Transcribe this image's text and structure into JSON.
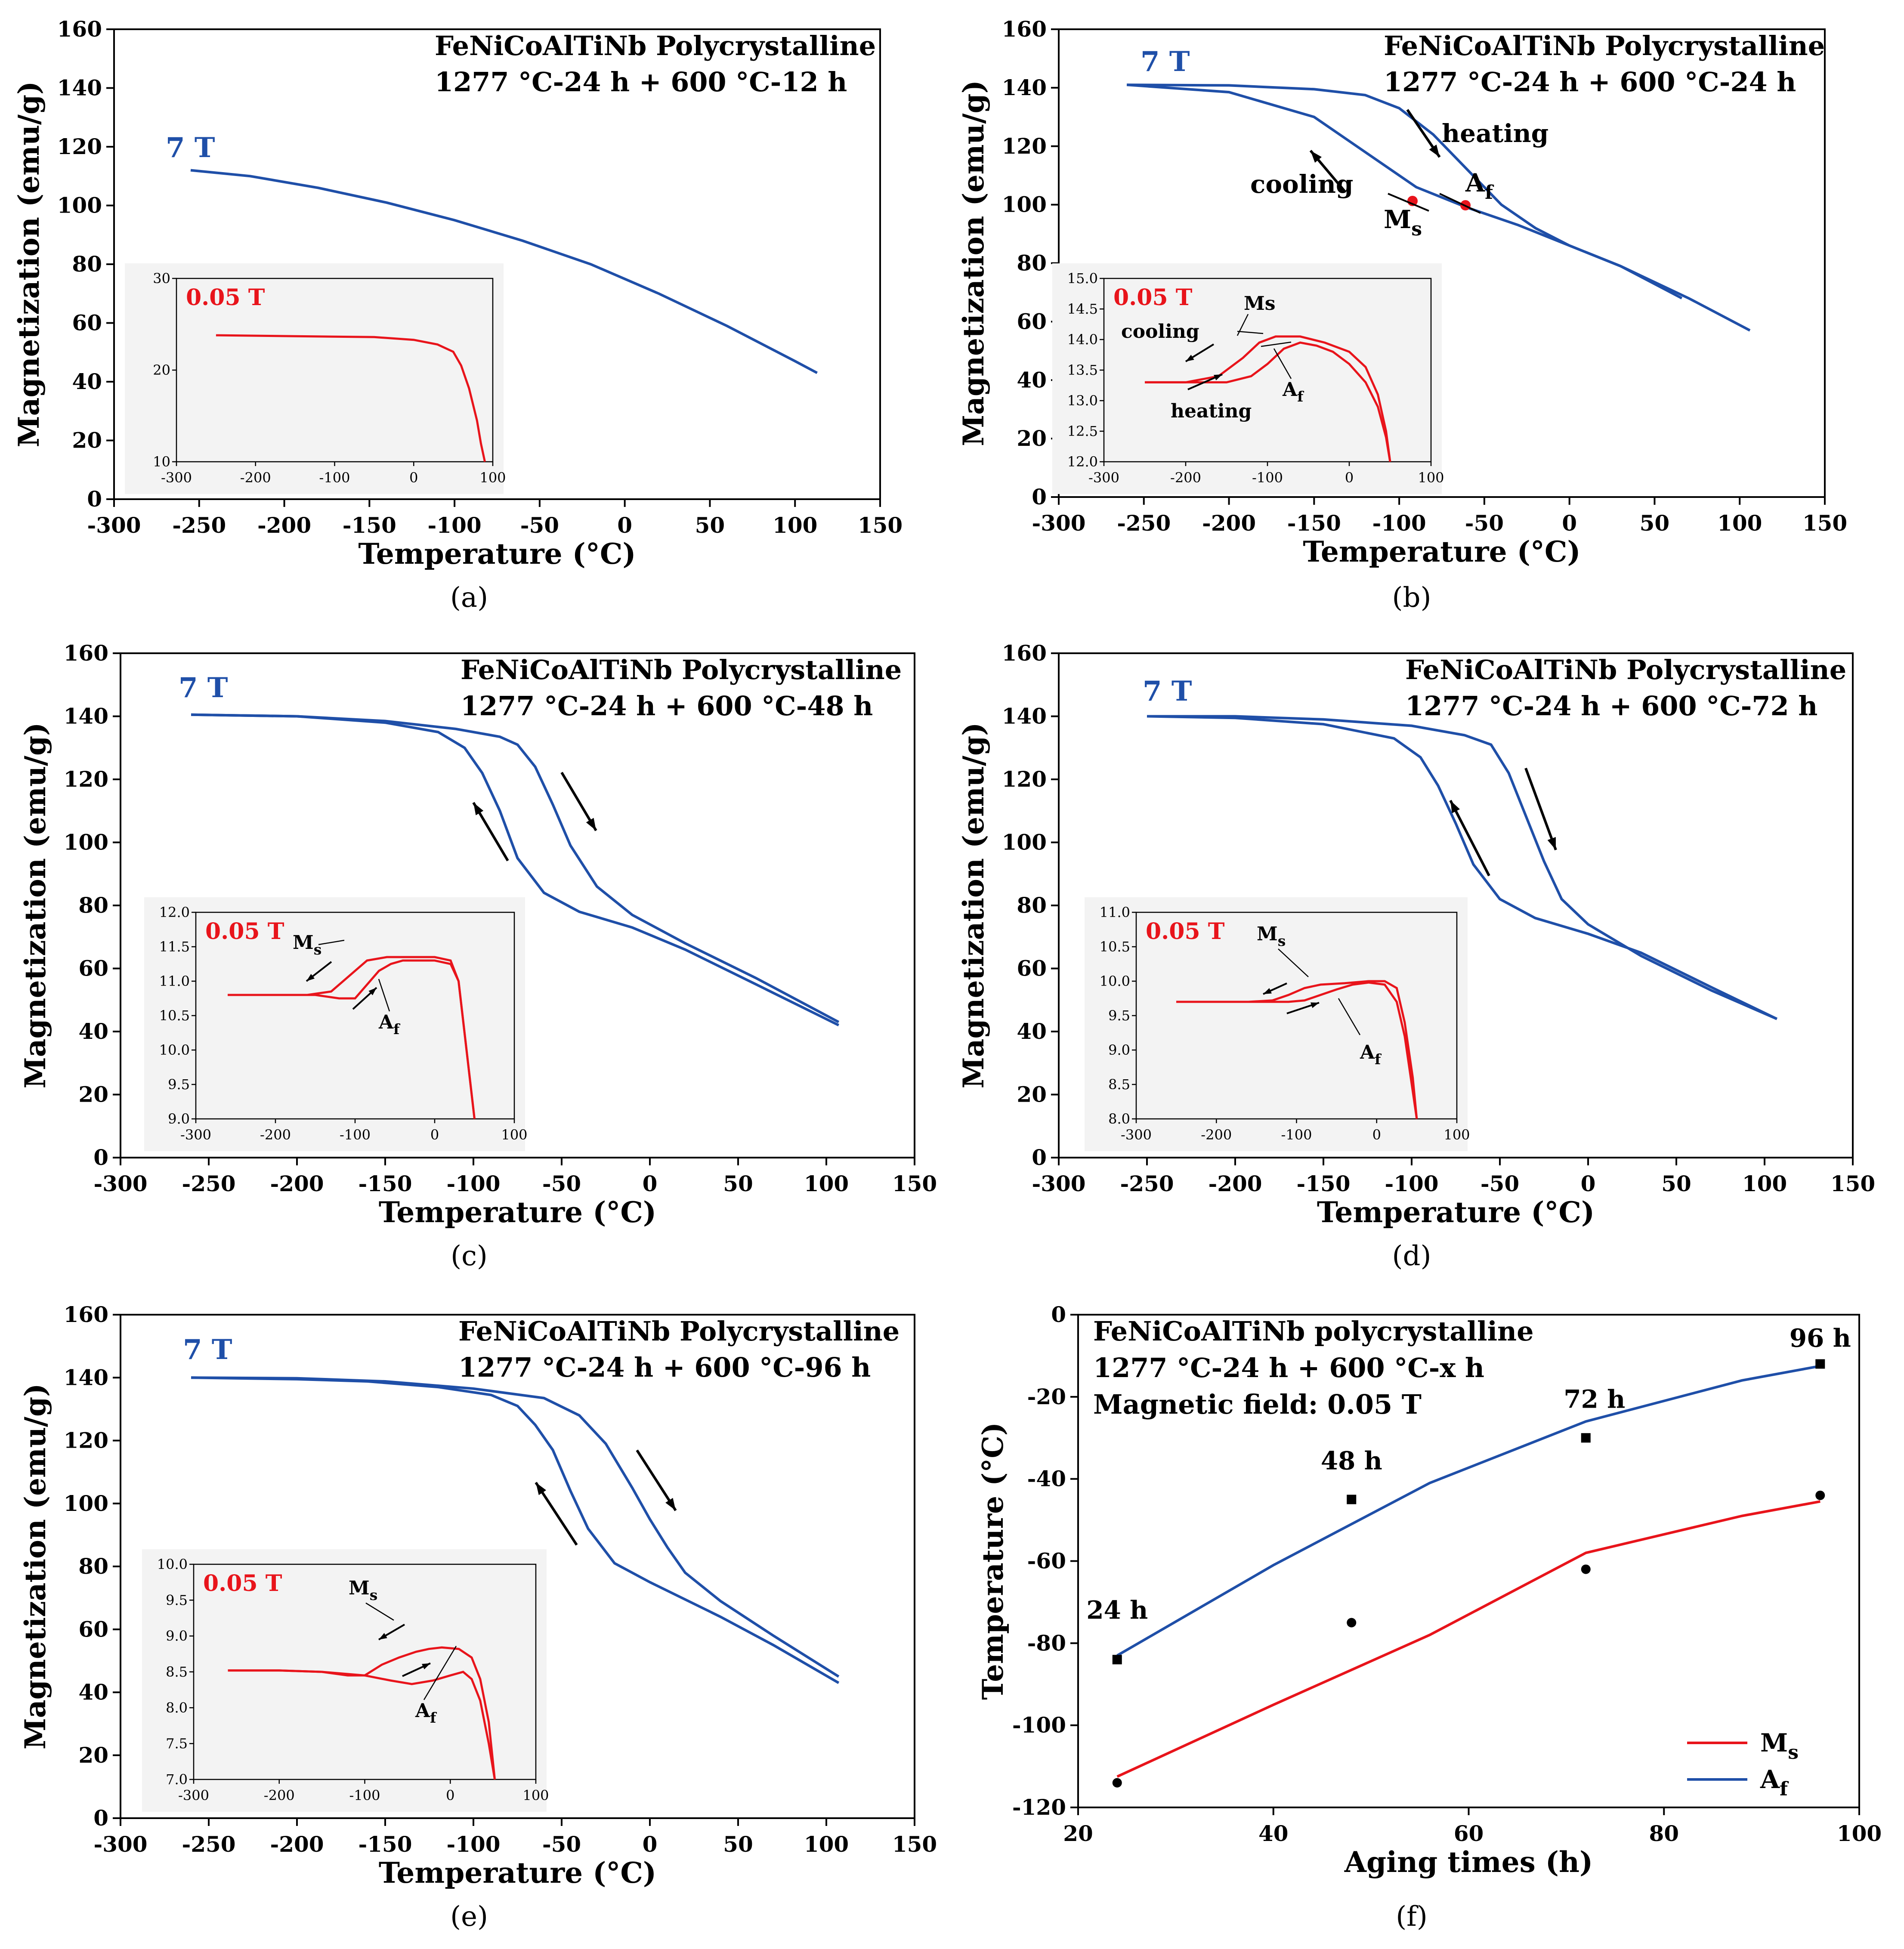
{
  "colors": {
    "cooling_heating_7T": "#1f4fa8",
    "inset_0_05T": "#e8141b",
    "Ms": "#e8141b",
    "Af": "#1f4fa8"
  },
  "chart_data": [
    {
      "id": "a",
      "type": "line",
      "panel_label": "(a)",
      "title_line1": "FeNiCoAlTiNb Polycrystalline",
      "title_line2": "1277 °C-24 h + 600 °C-12 h",
      "xlabel": "Temperature (°C)",
      "ylabel": "Magnetization (emu/g)",
      "xlim": [
        -300,
        150
      ],
      "ylim": [
        0,
        160
      ],
      "xticks": [
        -300,
        -250,
        -200,
        -150,
        -100,
        -50,
        0,
        50,
        100,
        150
      ],
      "yticks": [
        0,
        20,
        40,
        60,
        80,
        100,
        120,
        140,
        160
      ],
      "field_label": "7 T",
      "series": [
        {
          "name": "7 T",
          "x": [
            -255,
            -220,
            -180,
            -140,
            -100,
            -60,
            -20,
            20,
            60,
            100,
            113
          ],
          "y": [
            112,
            110,
            106,
            101,
            95,
            88,
            80,
            70,
            59,
            47,
            43
          ]
        }
      ],
      "inset": {
        "field_label": "0.05 T",
        "xlim": [
          -300,
          100
        ],
        "ylim": [
          10,
          30
        ],
        "xticks": [
          -300,
          -200,
          -100,
          0,
          100
        ],
        "yticks": [
          10,
          20,
          30
        ],
        "series": [
          {
            "name": "0.05 T",
            "x": [
              -250,
              -150,
              -50,
              0,
              30,
              50,
              60,
              70,
              80,
              85,
              90
            ],
            "y": [
              23.8,
              23.7,
              23.6,
              23.3,
              22.8,
              22,
              20.5,
              18,
              14.5,
              12,
              10
            ]
          }
        ]
      }
    },
    {
      "id": "b",
      "type": "line",
      "panel_label": "(b)",
      "title_line1": "FeNiCoAlTiNb Polycrystalline",
      "title_line2": "1277 °C-24 h + 600 °C-24 h",
      "xlabel": "Temperature (°C)",
      "ylabel": "Magnetization (emu/g)",
      "xlim": [
        -300,
        150
      ],
      "ylim": [
        0,
        160
      ],
      "xticks": [
        -300,
        -250,
        -200,
        -150,
        -100,
        -50,
        0,
        50,
        100,
        150
      ],
      "yticks": [
        0,
        20,
        40,
        60,
        80,
        100,
        120,
        140,
        160
      ],
      "field_label": "7 T",
      "annotations": {
        "heating": "heating",
        "cooling": "cooling",
        "Af": "A",
        "Af_sub": "f",
        "Ms": "M",
        "Ms_sub": "s"
      },
      "series": [
        {
          "name": "heating",
          "x": [
            -260,
            -200,
            -150,
            -120,
            -100,
            -80,
            -60,
            -40,
            -20,
            0,
            30,
            66
          ],
          "y": [
            141,
            140.8,
            139.5,
            137.5,
            133,
            124,
            112,
            100,
            92,
            86,
            79,
            68
          ]
        },
        {
          "name": "cooling",
          "x": [
            106,
            70,
            30,
            0,
            -30,
            -60,
            -90,
            -120,
            -150,
            -200,
            -260
          ],
          "y": [
            57,
            68,
            79,
            86,
            93,
            99,
            106,
            118,
            130,
            138.5,
            141
          ]
        }
      ],
      "inset": {
        "field_label": "0.05 T",
        "xlim": [
          -300,
          100
        ],
        "ylim": [
          12,
          15
        ],
        "xticks": [
          -300,
          -200,
          -100,
          0,
          100
        ],
        "yticks": [
          12.0,
          12.5,
          13.0,
          13.5,
          14.0,
          14.5,
          15.0
        ],
        "annotations": {
          "cooling": "cooling",
          "heating": "heating",
          "Ms": "Ms",
          "Af": "A",
          "Af_sub": "f"
        },
        "series": [
          {
            "name": "heating",
            "x": [
              -250,
              -200,
              -150,
              -120,
              -100,
              -80,
              -60,
              -40,
              -20,
              0,
              20,
              35,
              45,
              50
            ],
            "y": [
              13.3,
              13.3,
              13.3,
              13.4,
              13.6,
              13.85,
              13.95,
              13.9,
              13.8,
              13.6,
              13.3,
              12.9,
              12.4,
              12.0
            ]
          },
          {
            "name": "cooling",
            "x": [
              50,
              45,
              35,
              20,
              0,
              -30,
              -60,
              -90,
              -110,
              -130,
              -160,
              -200,
              -250
            ],
            "y": [
              12.0,
              12.5,
              13.1,
              13.55,
              13.8,
              13.95,
              14.05,
              14.05,
              13.95,
              13.7,
              13.4,
              13.3,
              13.3
            ]
          }
        ]
      }
    },
    {
      "id": "c",
      "type": "line",
      "panel_label": "(c)",
      "title_line1": "FeNiCoAlTiNb Polycrystalline",
      "title_line2": "1277 °C-24 h + 600 °C-48 h",
      "xlabel": "Temperature (°C)",
      "ylabel": "Magnetization (emu/g)",
      "xlim": [
        -300,
        150
      ],
      "ylim": [
        0,
        160
      ],
      "xticks": [
        -300,
        -250,
        -200,
        -150,
        -100,
        -50,
        0,
        50,
        100,
        150
      ],
      "yticks": [
        0,
        20,
        40,
        60,
        80,
        100,
        120,
        140,
        160
      ],
      "field_label": "7 T",
      "series": [
        {
          "name": "heating",
          "x": [
            -260,
            -200,
            -150,
            -110,
            -85,
            -75,
            -65,
            -55,
            -45,
            -30,
            -10,
            20,
            60,
            107
          ],
          "y": [
            140.5,
            140,
            138.5,
            136,
            133.5,
            131,
            124,
            112,
            99,
            86,
            77,
            68,
            57,
            43
          ]
        },
        {
          "name": "cooling",
          "x": [
            107,
            60,
            20,
            -10,
            -40,
            -60,
            -75,
            -85,
            -95,
            -105,
            -120,
            -150,
            -200,
            -260
          ],
          "y": [
            42,
            55,
            66,
            73,
            78,
            84,
            95,
            110,
            122,
            130,
            135,
            138,
            140,
            140.5
          ]
        }
      ],
      "inset": {
        "field_label": "0.05 T",
        "xlim": [
          -300,
          100
        ],
        "ylim": [
          9,
          12
        ],
        "xticks": [
          -300,
          -200,
          -100,
          0,
          100
        ],
        "yticks": [
          9.0,
          9.5,
          10.0,
          10.5,
          11.0,
          11.5,
          12.0
        ],
        "annotations": {
          "Ms": "M",
          "Ms_sub": "s",
          "Af": "A",
          "Af_sub": "f"
        },
        "series": [
          {
            "name": "heating",
            "x": [
              -260,
              -200,
              -150,
              -120,
              -100,
              -85,
              -70,
              -55,
              -40,
              -20,
              0,
              20,
              30,
              40,
              50
            ],
            "y": [
              10.8,
              10.8,
              10.8,
              10.75,
              10.75,
              10.95,
              11.15,
              11.25,
              11.3,
              11.3,
              11.3,
              11.25,
              11.0,
              10.0,
              9.0
            ]
          },
          {
            "name": "cooling",
            "x": [
              50,
              40,
              30,
              20,
              0,
              -30,
              -60,
              -85,
              -100,
              -115,
              -130,
              -160,
              -200,
              -260
            ],
            "y": [
              9.0,
              10.0,
              11.0,
              11.3,
              11.35,
              11.35,
              11.35,
              11.3,
              11.15,
              11.0,
              10.85,
              10.8,
              10.8,
              10.8
            ]
          }
        ]
      }
    },
    {
      "id": "d",
      "type": "line",
      "panel_label": "(d)",
      "title_line1": "FeNiCoAlTiNb Polycrystalline",
      "title_line2": "1277 °C-24 h + 600 °C-72 h",
      "xlabel": "Temperature (°C)",
      "ylabel": "Magnetization (emu/g)",
      "xlim": [
        -300,
        150
      ],
      "ylim": [
        0,
        160
      ],
      "xticks": [
        -300,
        -250,
        -200,
        -150,
        -100,
        -50,
        0,
        50,
        100,
        150
      ],
      "yticks": [
        0,
        20,
        40,
        60,
        80,
        100,
        120,
        140,
        160
      ],
      "field_label": "7 T",
      "series": [
        {
          "name": "heating",
          "x": [
            -250,
            -200,
            -150,
            -100,
            -70,
            -55,
            -45,
            -35,
            -25,
            -15,
            0,
            30,
            70,
            107
          ],
          "y": [
            140,
            140,
            139,
            137,
            134,
            131,
            122,
            108,
            94,
            82,
            74,
            64,
            53,
            44
          ]
        },
        {
          "name": "cooling",
          "x": [
            107,
            70,
            30,
            0,
            -30,
            -50,
            -65,
            -75,
            -85,
            -95,
            -110,
            -150,
            -200,
            -250
          ],
          "y": [
            44,
            54,
            65,
            71,
            76,
            82,
            93,
            106,
            118,
            127,
            133,
            137.5,
            139.5,
            140
          ]
        }
      ],
      "inset": {
        "field_label": "0.05 T",
        "xlim": [
          -300,
          100
        ],
        "ylim": [
          8,
          11
        ],
        "xticks": [
          -300,
          -200,
          -100,
          0,
          100
        ],
        "yticks": [
          8.0,
          8.5,
          9.0,
          9.5,
          10.0,
          10.5,
          11.0
        ],
        "annotations": {
          "Ms": "M",
          "Ms_sub": "s",
          "Af": "A",
          "Af_sub": "f"
        },
        "series": [
          {
            "name": "heating",
            "x": [
              -250,
              -200,
              -150,
              -110,
              -90,
              -70,
              -50,
              -30,
              -10,
              10,
              25,
              35,
              45,
              50
            ],
            "y": [
              9.7,
              9.7,
              9.7,
              9.7,
              9.72,
              9.8,
              9.88,
              9.95,
              9.98,
              9.95,
              9.7,
              9.2,
              8.4,
              8.0
            ]
          },
          {
            "name": "cooling",
            "x": [
              50,
              45,
              35,
              25,
              10,
              -10,
              -40,
              -70,
              -90,
              -110,
              -130,
              -160,
              -200,
              -250
            ],
            "y": [
              8.0,
              8.6,
              9.4,
              9.9,
              10.0,
              10.0,
              9.97,
              9.95,
              9.9,
              9.8,
              9.72,
              9.7,
              9.7,
              9.7
            ]
          }
        ]
      }
    },
    {
      "id": "e",
      "type": "line",
      "panel_label": "(e)",
      "title_line1": "FeNiCoAlTiNb Polycrystalline",
      "title_line2": "1277 °C-24 h + 600 °C-96 h",
      "xlabel": "Temperature (°C)",
      "ylabel": "Magnetization (emu/g)",
      "xlim": [
        -300,
        150
      ],
      "ylim": [
        0,
        160
      ],
      "xticks": [
        -300,
        -250,
        -200,
        -150,
        -100,
        -50,
        0,
        50,
        100,
        150
      ],
      "yticks": [
        0,
        20,
        40,
        60,
        80,
        100,
        120,
        140,
        160
      ],
      "field_label": "7 T",
      "series": [
        {
          "name": "heating",
          "x": [
            -260,
            -200,
            -150,
            -100,
            -60,
            -40,
            -25,
            -10,
            0,
            10,
            20,
            40,
            70,
            107
          ],
          "y": [
            140,
            139.8,
            138.8,
            136.5,
            133.5,
            128,
            119,
            105,
            95,
            86,
            78,
            69,
            58,
            45
          ]
        },
        {
          "name": "cooling",
          "x": [
            107,
            70,
            40,
            0,
            -20,
            -35,
            -45,
            -55,
            -65,
            -75,
            -90,
            -120,
            -160,
            -200,
            -260
          ],
          "y": [
            43,
            55,
            64,
            75,
            81,
            92,
            104,
            117,
            125,
            131,
            134.5,
            137,
            138.8,
            139.5,
            140
          ]
        }
      ],
      "inset": {
        "field_label": "0.05 T",
        "xlim": [
          -300,
          100
        ],
        "ylim": [
          7,
          10
        ],
        "xticks": [
          -300,
          -200,
          -100,
          0,
          100
        ],
        "yticks": [
          7.0,
          7.5,
          8.0,
          8.5,
          9.0,
          9.5,
          10.0
        ],
        "annotations": {
          "Ms": "M",
          "Ms_sub": "s",
          "Af": "A",
          "Af_sub": "f"
        },
        "series": [
          {
            "name": "heating",
            "x": [
              -260,
              -200,
              -150,
              -100,
              -70,
              -45,
              -20,
              0,
              15,
              25,
              35,
              45,
              52
            ],
            "y": [
              8.52,
              8.52,
              8.5,
              8.45,
              8.38,
              8.33,
              8.38,
              8.45,
              8.5,
              8.4,
              8.1,
              7.5,
              7.0
            ]
          },
          {
            "name": "cooling",
            "x": [
              52,
              45,
              35,
              25,
              10,
              -10,
              -25,
              -40,
              -60,
              -80,
              -100,
              -120,
              -150,
              -200,
              -260
            ],
            "y": [
              7.0,
              7.8,
              8.4,
              8.7,
              8.82,
              8.84,
              8.82,
              8.78,
              8.7,
              8.6,
              8.45,
              8.45,
              8.5,
              8.52,
              8.52
            ]
          }
        ]
      }
    },
    {
      "id": "f",
      "type": "scatter",
      "panel_label": "(f)",
      "title_line1": "FeNiCoAlTiNb polycrystalline",
      "title_line2": "1277 °C-24 h + 600 °C-x h",
      "title_line3": "Magnetic field: 0.05 T",
      "xlabel": "Aging times (h)",
      "ylabel": "Temperature (°C)",
      "xlim": [
        20,
        100
      ],
      "ylim": [
        -120,
        0
      ],
      "xticks": [
        20,
        40,
        60,
        80,
        100
      ],
      "yticks": [
        -120,
        -100,
        -80,
        -60,
        -40,
        -20,
        0
      ],
      "point_labels": [
        "24 h",
        "48 h",
        "72 h",
        "96 h"
      ],
      "series": [
        {
          "name": "Ms",
          "legend_main": "M",
          "legend_sub": "s",
          "x": [
            24,
            48,
            72,
            96
          ],
          "y": [
            -114,
            -75,
            -62,
            -44
          ],
          "fit": [
            [
              24,
              -112.5
            ],
            [
              40,
              -95
            ],
            [
              56,
              -78
            ],
            [
              72,
              -58
            ],
            [
              88,
              -49
            ],
            [
              96,
              -45.5
            ]
          ]
        },
        {
          "name": "Af",
          "legend_main": "A",
          "legend_sub": "f",
          "x": [
            24,
            48,
            72,
            96
          ],
          "y": [
            -84,
            -45,
            -30,
            -12
          ],
          "fit": [
            [
              24,
              -83
            ],
            [
              40,
              -61
            ],
            [
              56,
              -41
            ],
            [
              72,
              -26
            ],
            [
              88,
              -16
            ],
            [
              96,
              -12.5
            ]
          ]
        }
      ]
    }
  ]
}
